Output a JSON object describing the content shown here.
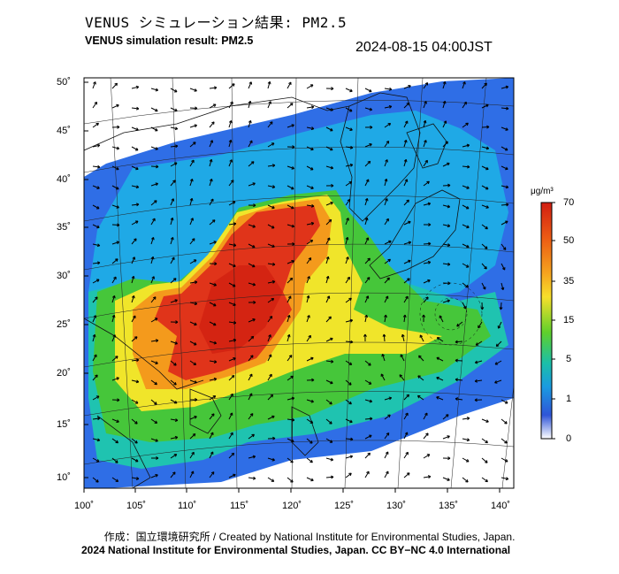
{
  "title_ja": "VENUS シミュレーション結果: PM2.5",
  "title_en": "VENUS simulation result: PM2.5",
  "timestamp": "2024-08-15 04:00JST",
  "lat_labels": [
    "50˚",
    "45˚",
    "40˚",
    "35˚",
    "30˚",
    "25˚",
    "20˚",
    "15˚",
    "10˚"
  ],
  "lon_labels": [
    "100˚",
    "105˚",
    "110˚",
    "115˚",
    "120˚",
    "125˚",
    "130˚",
    "135˚",
    "140˚"
  ],
  "colorbar": {
    "unit": "μg/m³",
    "ticks": [
      "70",
      "50",
      "35",
      "15",
      "5",
      "1",
      "0"
    ],
    "colors": [
      "#d62b14",
      "#f07a16",
      "#f8d42a",
      "#5fd02b",
      "#1fb3c8",
      "#2f5fe0",
      "#ffffff"
    ]
  },
  "credit_line1": "作成：国立環境研究所 / Created by National Institute for Environmental Studies, Japan.",
  "credit_line2": "2024 National Institute for Environmental Studies, Japan. CC BY−NC 4.0 International"
}
